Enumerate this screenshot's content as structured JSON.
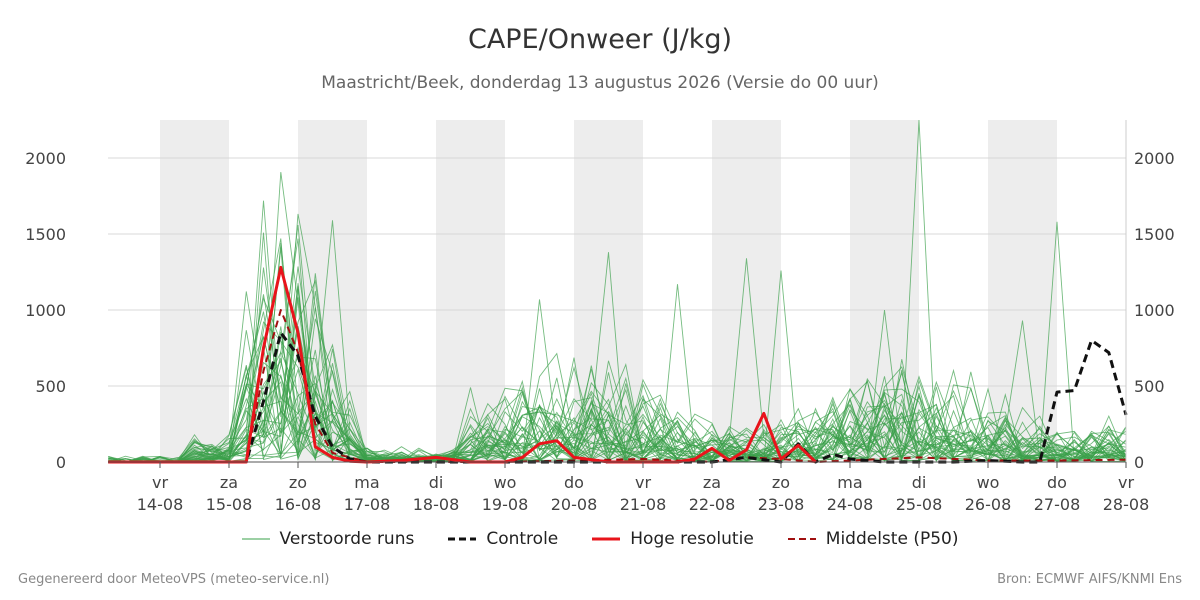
{
  "chart_data": {
    "type": "line",
    "title": "CAPE/Onweer (J/kg)",
    "subtitle": "Maastricht/Beek, donderdag 13 augustus 2026 (Versie do 00 uur)",
    "ylim": [
      0,
      2250
    ],
    "yticks": [
      "0",
      "500",
      "1000",
      "1500",
      "2000"
    ],
    "ytick_values": [
      0,
      500,
      1000,
      1500,
      2000
    ],
    "grid": true,
    "xlim": [
      -0.75,
      14
    ],
    "x_ticks": [
      {
        "day": "vr",
        "date": "14-08"
      },
      {
        "day": "za",
        "date": "15-08"
      },
      {
        "day": "zo",
        "date": "16-08"
      },
      {
        "day": "ma",
        "date": "17-08"
      },
      {
        "day": "di",
        "date": "18-08"
      },
      {
        "day": "wo",
        "date": "19-08"
      },
      {
        "day": "do",
        "date": "20-08"
      },
      {
        "day": "vr",
        "date": "21-08"
      },
      {
        "day": "za",
        "date": "22-08"
      },
      {
        "day": "zo",
        "date": "23-08"
      },
      {
        "day": "ma",
        "date": "24-08"
      },
      {
        "day": "di",
        "date": "25-08"
      },
      {
        "day": "wo",
        "date": "26-08"
      },
      {
        "day": "do",
        "date": "27-08"
      },
      {
        "day": "vr",
        "date": "28-08"
      }
    ],
    "weekend_like_bands": [
      0,
      2,
      4,
      6,
      8,
      10,
      12
    ],
    "legend": [
      "Verstoorde runs",
      "Controle",
      "Hoge resolutie",
      "Middelste (P50)"
    ],
    "legend_position": "bottom",
    "colors": {
      "ensemble": "#3aa04a",
      "control": "#111111",
      "high_res": "#e8141b",
      "median": "#a01010",
      "band": "#ededed",
      "grid": "#d8d8d8"
    },
    "series": {
      "hoge_resolutie": {
        "name": "Hoge resolutie",
        "x": [
          -0.75,
          0,
          0.5,
          1,
          1.25,
          1.5,
          1.75,
          2,
          2.25,
          2.5,
          2.75,
          3,
          3.5,
          4,
          4.5,
          5,
          5.25,
          5.5,
          5.75,
          6,
          6.5,
          7,
          7.5,
          7.75,
          8,
          8.25,
          8.5,
          8.75,
          9,
          9.25,
          9.5
        ],
        "values": [
          0,
          0,
          0,
          0,
          0,
          750,
          1280,
          850,
          100,
          30,
          5,
          0,
          10,
          30,
          0,
          0,
          30,
          120,
          140,
          30,
          0,
          0,
          0,
          20,
          90,
          10,
          80,
          320,
          20,
          110,
          0
        ]
      },
      "controle": {
        "name": "Controle",
        "x": [
          -0.75,
          0,
          1,
          1.25,
          1.5,
          1.75,
          2,
          2.25,
          2.5,
          2.75,
          3,
          4,
          5,
          6,
          7,
          8,
          8.5,
          9,
          9.25,
          9.5,
          9.75,
          10,
          10.5,
          11,
          11.5,
          12,
          12.5,
          12.75,
          13,
          13.25,
          13.5,
          13.75,
          14
        ],
        "values": [
          0,
          0,
          0,
          0,
          400,
          850,
          700,
          300,
          100,
          20,
          0,
          0,
          0,
          0,
          0,
          0,
          30,
          0,
          120,
          0,
          50,
          20,
          0,
          0,
          0,
          10,
          0,
          0,
          460,
          470,
          800,
          720,
          310
        ]
      },
      "middelste": {
        "name": "Middelste (P50)",
        "x": [
          -0.75,
          0,
          1,
          1.25,
          1.5,
          1.75,
          2,
          2.25,
          2.5,
          3,
          4,
          5,
          6,
          7,
          8,
          8.5,
          9,
          9.5,
          10,
          11,
          12,
          13,
          14
        ],
        "values": [
          0,
          0,
          0,
          0,
          600,
          1000,
          720,
          250,
          60,
          0,
          0,
          0,
          10,
          20,
          0,
          30,
          20,
          0,
          10,
          30,
          10,
          10,
          15
        ]
      },
      "verstoorde_runs_peaks": {
        "name": "Verstoorde runs",
        "x": [
          1.5,
          2,
          2.5,
          4.5,
          5.5,
          6.5,
          7.5,
          8.5,
          9.0,
          10.5,
          11.0,
          12.5,
          13.0
        ],
        "values": [
          1720,
          1470,
          1590,
          490,
          1070,
          1380,
          1170,
          1340,
          1260,
          1000,
          2260,
          930,
          1580
        ]
      }
    }
  },
  "footer": {
    "left": "Gegenereerd door MeteoVPS (meteo-service.nl)",
    "right": "Bron: ECMWF AIFS/KNMI Ens"
  }
}
